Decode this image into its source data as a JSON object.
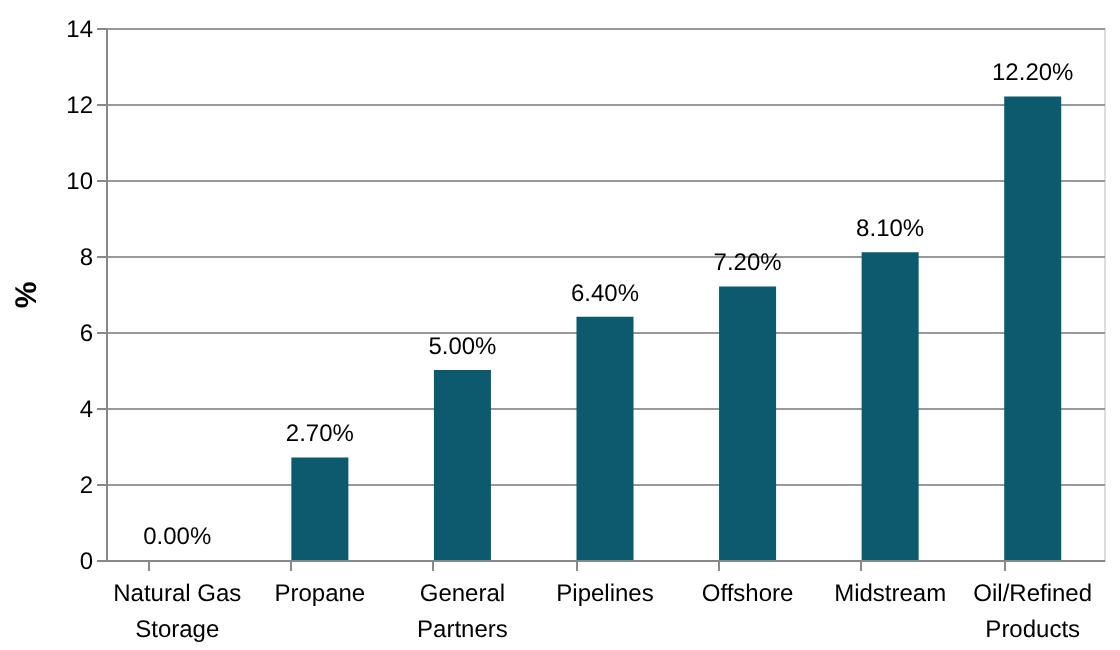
{
  "chart_data": {
    "type": "bar",
    "ylabel": "%",
    "categories": [
      "Natural Gas Storage",
      "Propane",
      "General Partners",
      "Pipelines",
      "Offshore",
      "Midstream",
      "Oil/Refined Products"
    ],
    "values": [
      0.0,
      2.7,
      5.0,
      6.4,
      7.2,
      8.1,
      12.2
    ],
    "value_labels": [
      "0.00%",
      "2.70%",
      "5.00%",
      "6.40%",
      "7.20%",
      "8.10%",
      "12.20%"
    ],
    "color": "#0b5a6d",
    "ylim": [
      0,
      14
    ],
    "yticks": [
      0,
      2,
      4,
      6,
      8,
      10,
      12,
      14
    ],
    "grid": "y"
  }
}
